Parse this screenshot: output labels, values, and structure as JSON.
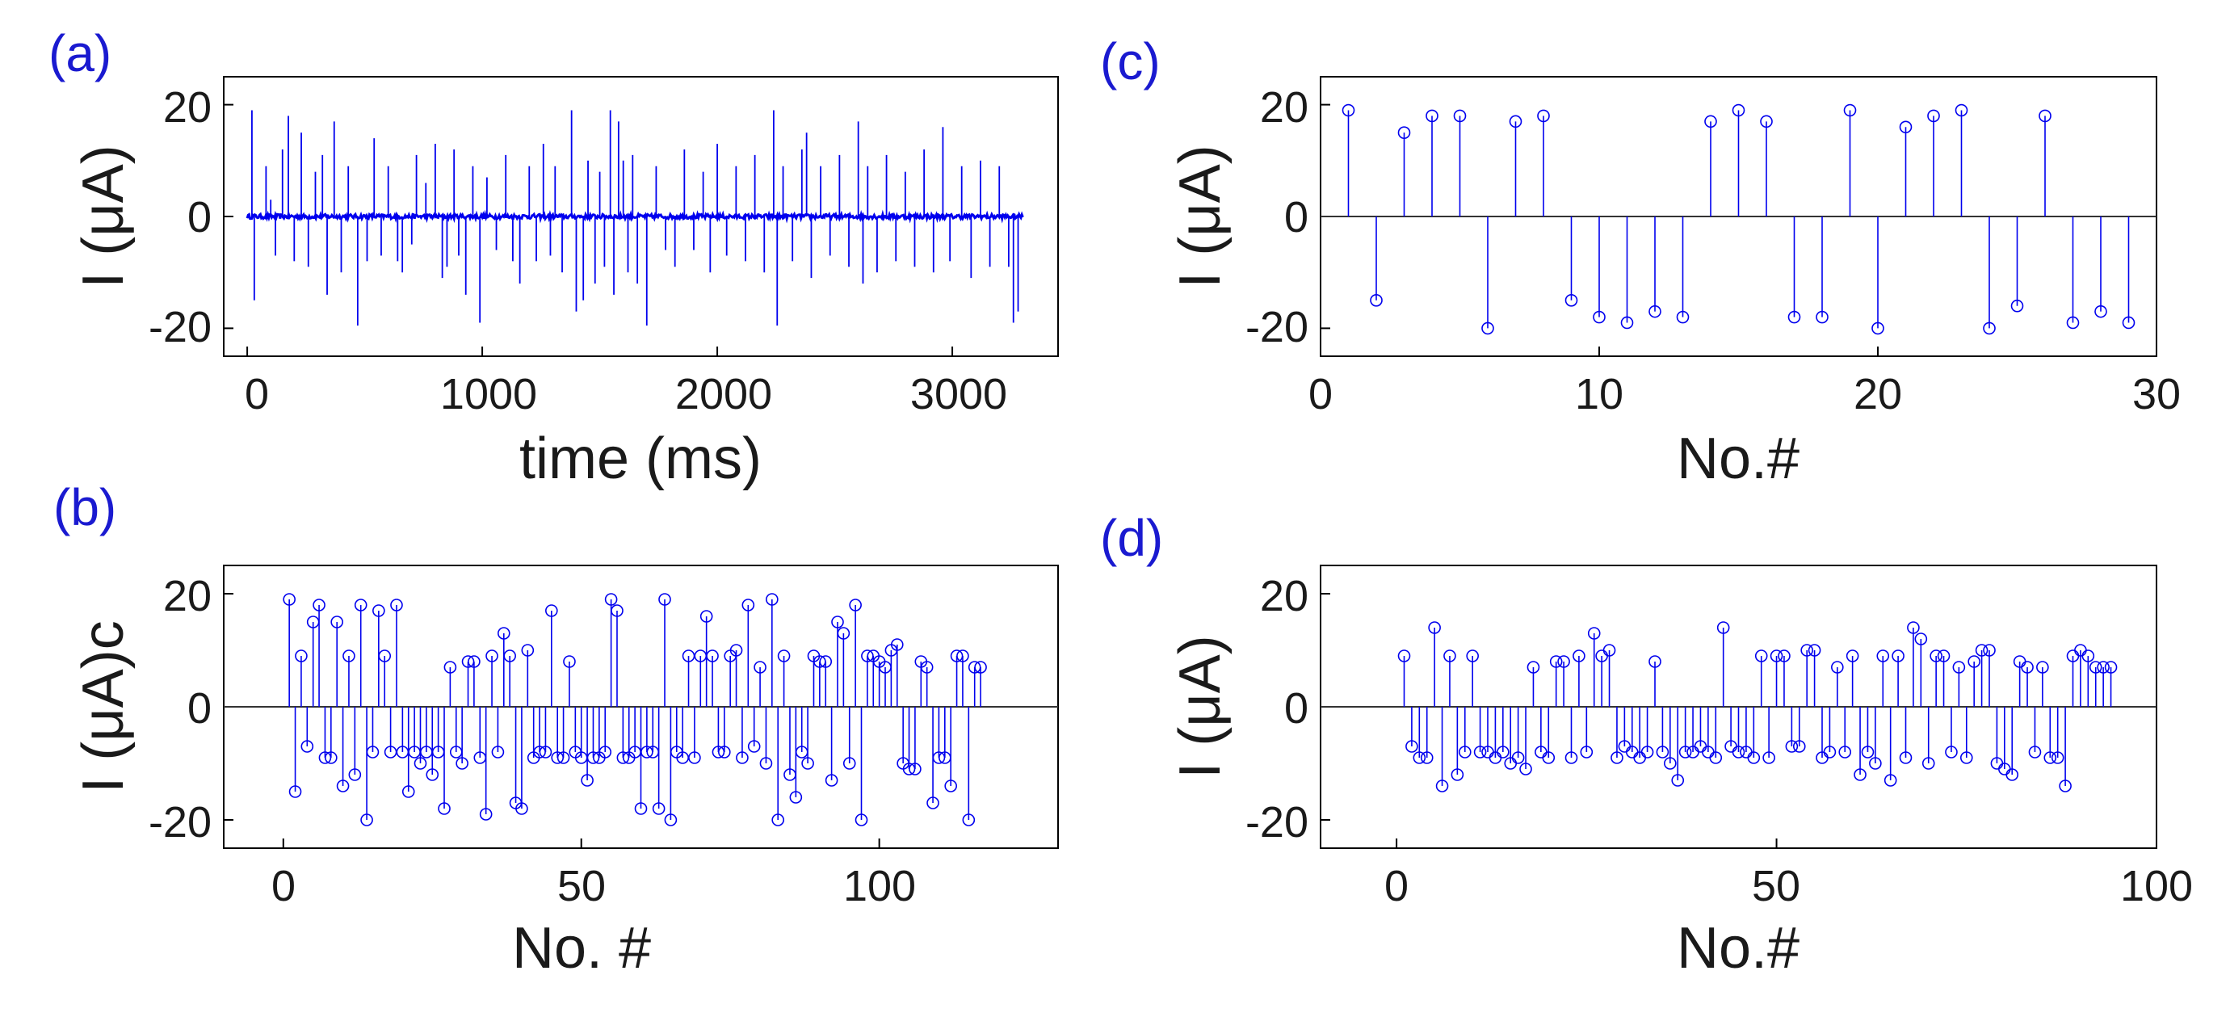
{
  "colors": {
    "series": "#0000ee",
    "axis": "#000000",
    "text": "#1a1a1a",
    "panel_label": "#1a1ad0"
  },
  "chart_data": [
    {
      "panel": "(a)",
      "type": "line",
      "title": "",
      "xlabel": "time (ms)",
      "ylabel": "I (μA)",
      "xlim": [
        -100,
        3450
      ],
      "ylim": [
        -25,
        25
      ],
      "xticks": [
        0,
        1000,
        2000,
        3000
      ],
      "xtick_labels": [
        "0",
        "1000",
        "2000",
        "3000"
      ],
      "yticks": [
        -20,
        0,
        20
      ],
      "ytick_labels": [
        "-20",
        "0",
        "20"
      ],
      "baseline_range": [
        0,
        3300
      ],
      "baseline_noise": 0.4,
      "spikes": [
        [
          20,
          19
        ],
        [
          30,
          -15
        ],
        [
          80,
          9
        ],
        [
          100,
          3
        ],
        [
          120,
          -7
        ],
        [
          150,
          12
        ],
        [
          175,
          18
        ],
        [
          200,
          -8
        ],
        [
          230,
          15
        ],
        [
          260,
          -9
        ],
        [
          290,
          8
        ],
        [
          320,
          11
        ],
        [
          340,
          -14
        ],
        [
          370,
          17
        ],
        [
          400,
          -10
        ],
        [
          430,
          9
        ],
        [
          470,
          -19.5
        ],
        [
          510,
          -8
        ],
        [
          540,
          14
        ],
        [
          570,
          -7
        ],
        [
          600,
          9
        ],
        [
          640,
          -8
        ],
        [
          660,
          -10
        ],
        [
          700,
          -5
        ],
        [
          720,
          11
        ],
        [
          760,
          6
        ],
        [
          800,
          13
        ],
        [
          830,
          -11
        ],
        [
          850,
          -9
        ],
        [
          880,
          12
        ],
        [
          900,
          -7
        ],
        [
          930,
          -14
        ],
        [
          960,
          9
        ],
        [
          990,
          -19
        ],
        [
          1020,
          7
        ],
        [
          1060,
          -6
        ],
        [
          1100,
          11
        ],
        [
          1130,
          -8
        ],
        [
          1160,
          -12
        ],
        [
          1200,
          9
        ],
        [
          1230,
          -8
        ],
        [
          1260,
          13
        ],
        [
          1290,
          -7
        ],
        [
          1310,
          9
        ],
        [
          1340,
          -10
        ],
        [
          1380,
          19
        ],
        [
          1400,
          -17
        ],
        [
          1430,
          -15
        ],
        [
          1450,
          10
        ],
        [
          1480,
          -12
        ],
        [
          1500,
          8
        ],
        [
          1520,
          -9
        ],
        [
          1545,
          19
        ],
        [
          1560,
          -14
        ],
        [
          1580,
          17
        ],
        [
          1600,
          10
        ],
        [
          1620,
          -10
        ],
        [
          1640,
          11
        ],
        [
          1660,
          -12
        ],
        [
          1700,
          -19.5
        ],
        [
          1740,
          9
        ],
        [
          1780,
          -6
        ],
        [
          1820,
          -9
        ],
        [
          1860,
          12
        ],
        [
          1900,
          -6
        ],
        [
          1940,
          8
        ],
        [
          1970,
          -10
        ],
        [
          2000,
          13
        ],
        [
          2040,
          -7
        ],
        [
          2080,
          9
        ],
        [
          2120,
          -8
        ],
        [
          2160,
          11
        ],
        [
          2200,
          -10
        ],
        [
          2240,
          19
        ],
        [
          2255,
          -19.5
        ],
        [
          2280,
          9
        ],
        [
          2320,
          -8
        ],
        [
          2360,
          12
        ],
        [
          2380,
          15
        ],
        [
          2400,
          -11
        ],
        [
          2440,
          9
        ],
        [
          2480,
          -7
        ],
        [
          2520,
          11
        ],
        [
          2560,
          -9
        ],
        [
          2600,
          17
        ],
        [
          2620,
          -12
        ],
        [
          2640,
          9
        ],
        [
          2680,
          -10
        ],
        [
          2720,
          11
        ],
        [
          2760,
          -8
        ],
        [
          2800,
          8
        ],
        [
          2840,
          -9
        ],
        [
          2880,
          12
        ],
        [
          2920,
          -10
        ],
        [
          2960,
          16
        ],
        [
          2990,
          -8
        ],
        [
          3040,
          9
        ],
        [
          3080,
          -11
        ],
        [
          3120,
          10
        ],
        [
          3160,
          -9
        ],
        [
          3200,
          9
        ],
        [
          3240,
          -9
        ],
        [
          3260,
          -19
        ],
        [
          3280,
          -17
        ]
      ]
    },
    {
      "panel": "(b)",
      "type": "stem",
      "title": "",
      "xlabel": "No. #",
      "ylabel": "I (μA)c",
      "xlim": [
        -10,
        130
      ],
      "ylim": [
        -25,
        25
      ],
      "xticks": [
        0,
        50,
        100
      ],
      "xtick_labels": [
        "0",
        "50",
        "100"
      ],
      "yticks": [
        -20,
        0,
        20
      ],
      "ytick_labels": [
        "-20",
        "0",
        "20"
      ],
      "x_start": 1,
      "values": [
        19,
        -15,
        9,
        -7,
        15,
        18,
        -9,
        -9,
        15,
        -14,
        9,
        -12,
        18,
        -20,
        -8,
        17,
        9,
        -8,
        18,
        -8,
        -15,
        -8,
        -10,
        -8,
        -12,
        -8,
        -18,
        7,
        -8,
        -10,
        8,
        8,
        -9,
        -19,
        9,
        -8,
        13,
        9,
        -17,
        -18,
        10,
        -9,
        -8,
        -8,
        17,
        -9,
        -9,
        8,
        -8,
        -9,
        -13,
        -9,
        -9,
        -8,
        19,
        17,
        -9,
        -9,
        -8,
        -18,
        -8,
        -8,
        -18,
        19,
        -20,
        -8,
        -9,
        9,
        -9,
        9,
        16,
        9,
        -8,
        -8,
        9,
        10,
        -9,
        18,
        -7,
        7,
        -10,
        19,
        -20,
        9,
        -12,
        -16,
        -8,
        -10,
        9,
        8,
        8,
        -13,
        15,
        13,
        -10,
        18,
        -20,
        9,
        9,
        8,
        7,
        10,
        11,
        -10,
        -11,
        -11,
        8,
        7,
        -17,
        -9,
        -9,
        -14,
        9,
        9,
        -20,
        7,
        7
      ]
    },
    {
      "panel": "(c)",
      "type": "stem",
      "title": "",
      "xlabel": "No.#",
      "ylabel": "I (μA)",
      "xlim": [
        0,
        30
      ],
      "ylim": [
        -25,
        25
      ],
      "xticks": [
        0,
        10,
        20,
        30
      ],
      "xtick_labels": [
        "0",
        "10",
        "20",
        "30"
      ],
      "yticks": [
        -20,
        0,
        20
      ],
      "ytick_labels": [
        "-20",
        "0",
        "20"
      ],
      "x_start": 1,
      "values": [
        19,
        -15,
        15,
        18,
        18,
        -20,
        17,
        18,
        -15,
        -18,
        -19,
        -17,
        -18,
        17,
        19,
        17,
        -18,
        -18,
        19,
        -20,
        16,
        18,
        19,
        -20,
        -16,
        18,
        -19,
        -17,
        -19
      ]
    },
    {
      "panel": "(d)",
      "type": "stem",
      "title": "",
      "xlabel": "No.#",
      "ylabel": "I (μA)",
      "xlim": [
        -10,
        100
      ],
      "ylim": [
        -25,
        25
      ],
      "xticks": [
        0,
        50,
        100
      ],
      "xtick_labels": [
        "0",
        "50",
        "100"
      ],
      "yticks": [
        -20,
        0,
        20
      ],
      "ytick_labels": [
        "-20",
        "0",
        "20"
      ],
      "x_start": 1,
      "values": [
        9,
        -7,
        -9,
        -9,
        14,
        -14,
        9,
        -12,
        -8,
        9,
        -8,
        -8,
        -9,
        -8,
        -10,
        -9,
        -11,
        7,
        -8,
        -9,
        8,
        8,
        -9,
        9,
        -8,
        13,
        9,
        10,
        -9,
        -7,
        -8,
        -9,
        -8,
        8,
        -8,
        -10,
        -13,
        -8,
        -8,
        -7,
        -8,
        -9,
        14,
        -7,
        -8,
        -8,
        -9,
        9,
        -9,
        9,
        9,
        -7,
        -7,
        10,
        10,
        -9,
        -8,
        7,
        -8,
        9,
        -12,
        -8,
        -10,
        9,
        -13,
        9,
        -9,
        14,
        12,
        -10,
        9,
        9,
        -8,
        7,
        -9,
        8,
        10,
        10,
        -10,
        -11,
        -12,
        8,
        7,
        -8,
        7,
        -9,
        -9,
        -14,
        9,
        10,
        9,
        7,
        7,
        7
      ]
    }
  ]
}
